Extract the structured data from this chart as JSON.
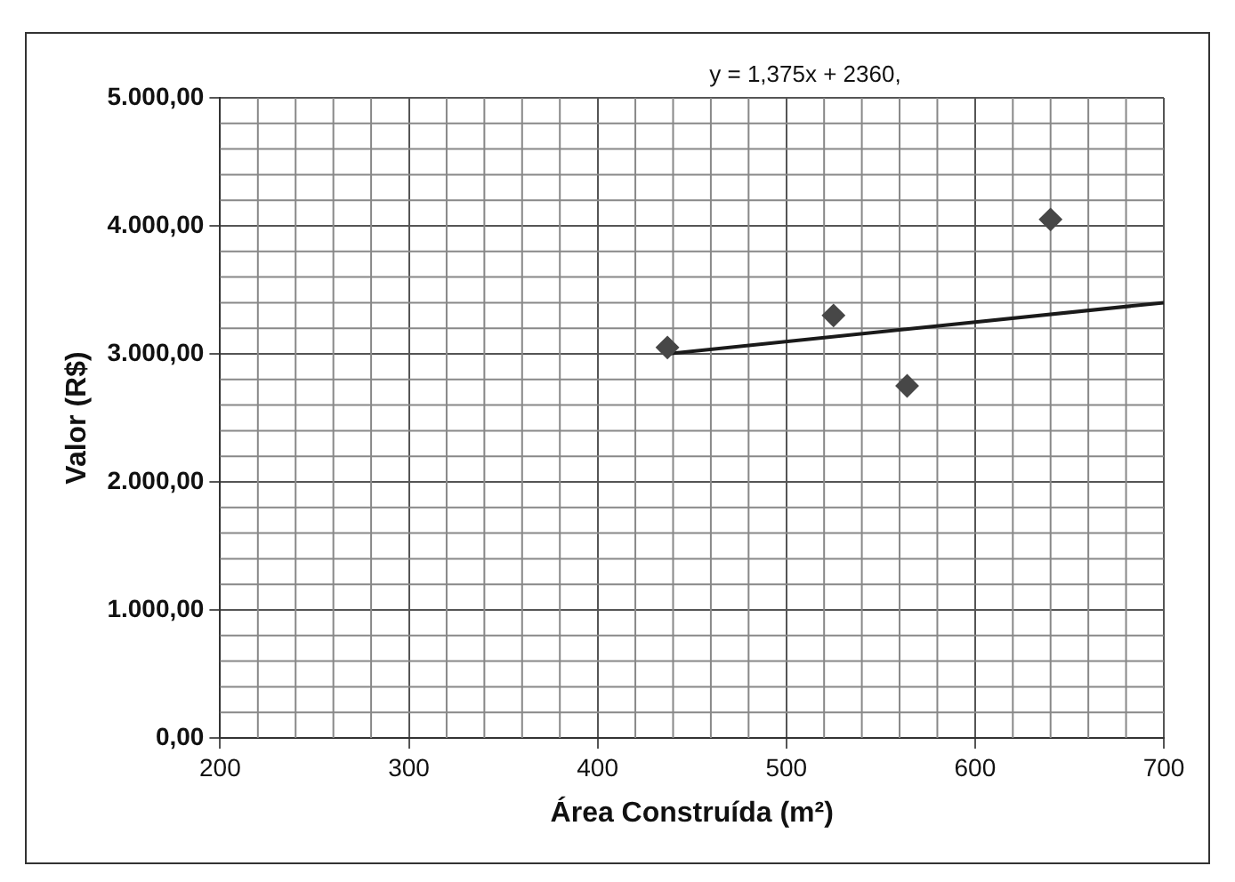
{
  "chart_data": {
    "type": "scatter",
    "xlabel": "Área Construída (m²)",
    "ylabel": "Valor (R$)",
    "annotations": [
      "y = 1,375x + 2360,"
    ],
    "series": [
      {
        "color": "#474747",
        "x": [
          437,
          525,
          564,
          640
        ],
        "values": [
          3050,
          3300,
          2750,
          4050
        ]
      },
      {
        "type": "line",
        "color": "#1a1a1a",
        "marker": "none",
        "x": [
          437,
          700
        ],
        "values": [
          3000,
          3400
        ]
      }
    ],
    "xlim": [
      200,
      700
    ],
    "xticks": [
      200,
      300,
      400,
      500,
      600,
      700
    ],
    "ylim": [
      0,
      5000
    ],
    "yticks": [
      {
        "value": 0,
        "label": "0,00"
      },
      {
        "value": 1000,
        "label": "1.000,00"
      },
      {
        "value": 2000,
        "label": "2.000,00"
      },
      {
        "value": 3000,
        "label": "3.000,00"
      },
      {
        "value": 4000,
        "label": "4.000,00"
      },
      {
        "value": 5000,
        "label": "5.000,00"
      }
    ],
    "grid": true,
    "legend": false,
    "marker": "diamond"
  }
}
